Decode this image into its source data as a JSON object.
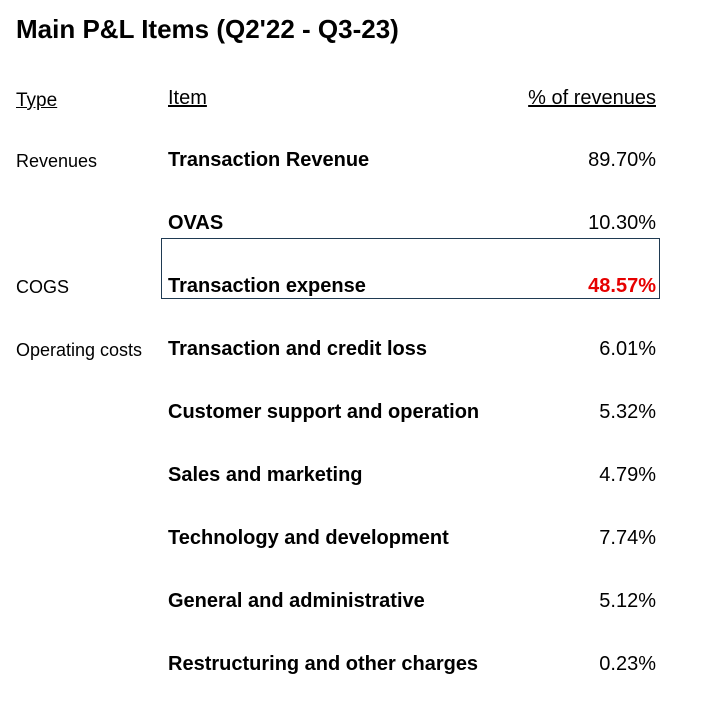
{
  "title": "Main P&L Items (Q2'22 - Q3-23)",
  "headers": {
    "type": "Type",
    "item": "Item",
    "pct": "% of revenues"
  },
  "colors": {
    "highlight_text": "#e60000",
    "highlight_border": "#1f3a52"
  },
  "rows": [
    {
      "type": "Revenues",
      "item": "Transaction Revenue",
      "pct": "89.70%"
    },
    {
      "type": "",
      "item": "OVAS",
      "pct": "10.30%"
    },
    {
      "type": "COGS",
      "item": "Transaction expense",
      "pct": "48.57%",
      "highlighted": true
    },
    {
      "type": "Operating costs",
      "item": "Transaction and credit loss",
      "pct": "6.01%"
    },
    {
      "type": "",
      "item": "Customer support and operation",
      "pct": "5.32%"
    },
    {
      "type": "",
      "item": "Sales and marketing",
      "pct": "4.79%"
    },
    {
      "type": "",
      "item": "Technology and development",
      "pct": "7.74%"
    },
    {
      "type": "",
      "item": "General and administrative",
      "pct": "5.12%"
    },
    {
      "type": "",
      "item": "Restructuring and other charges",
      "pct": "0.23%"
    }
  ]
}
